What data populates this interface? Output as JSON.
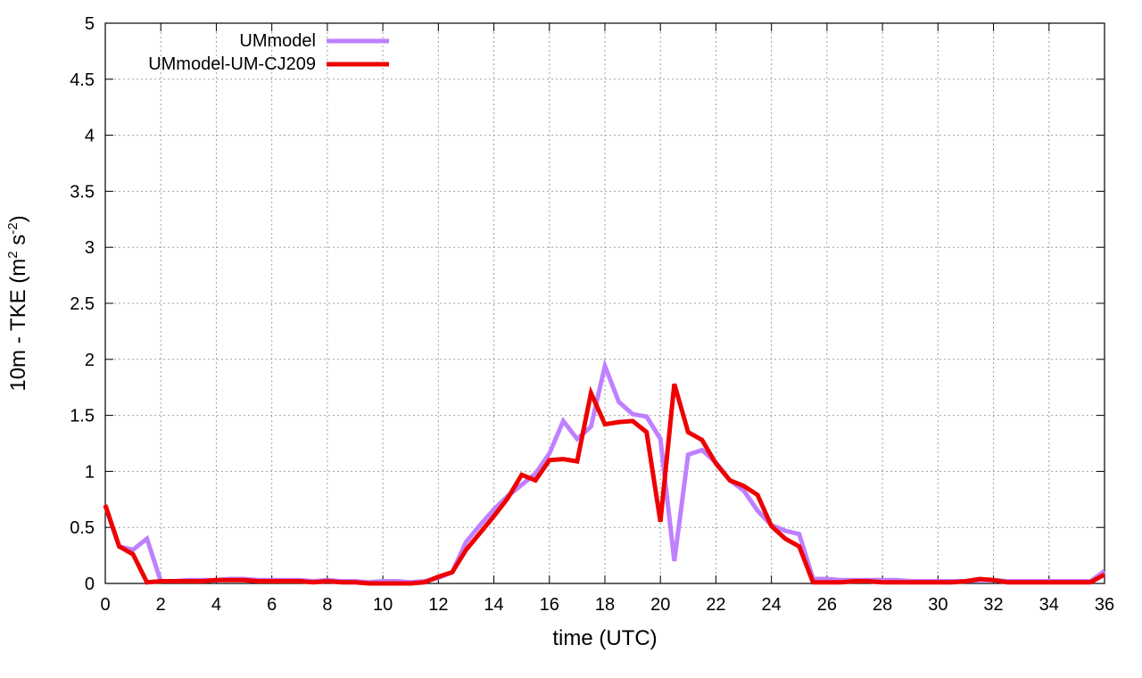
{
  "chart_data": {
    "type": "line",
    "xlabel": "time (UTC)",
    "ylabel": {
      "prefix": "10m - TKE (m",
      "sup1": "2",
      "mid": " s",
      "sup2": "-2",
      "suffix": ")"
    },
    "xlim": [
      0,
      36
    ],
    "ylim": [
      0,
      5
    ],
    "xticks": [
      0,
      2,
      4,
      6,
      8,
      10,
      12,
      14,
      16,
      18,
      20,
      22,
      24,
      26,
      28,
      30,
      32,
      34,
      36
    ],
    "yticks": [
      0,
      0.5,
      1,
      1.5,
      2,
      2.5,
      3,
      3.5,
      4,
      4.5,
      5
    ],
    "ytick_labels": [
      "0",
      "0.5",
      "1",
      "1.5",
      "2",
      "2.5",
      "3",
      "3.5",
      "4",
      "4.5",
      "5"
    ],
    "grid": true,
    "legend_position": "top-left",
    "series": [
      {
        "name": "UMmodel",
        "color": "#bf80ff",
        "x": [
          0,
          0.5,
          1,
          1.5,
          2,
          2.5,
          3,
          3.5,
          4,
          4.5,
          5,
          5.5,
          6,
          6.5,
          7,
          7.5,
          8,
          8.5,
          9,
          9.5,
          10,
          10.5,
          11,
          11.5,
          12,
          12.5,
          13,
          13.5,
          14,
          14.5,
          15,
          15.5,
          16,
          16.5,
          17,
          17.5,
          18,
          18.5,
          19,
          19.5,
          20,
          20.5,
          21,
          21.5,
          22,
          22.5,
          23,
          23.5,
          24,
          24.5,
          25,
          25.5,
          26,
          26.5,
          27,
          27.5,
          28,
          28.5,
          29,
          29.5,
          30,
          30.5,
          31,
          31.5,
          32,
          32.5,
          33,
          33.5,
          34,
          34.5,
          35,
          35.5,
          36
        ],
        "values": [
          0.69,
          0.33,
          0.3,
          0.4,
          0.02,
          0.02,
          0.03,
          0.03,
          0.03,
          0.04,
          0.04,
          0.03,
          0.03,
          0.03,
          0.03,
          0.02,
          0.03,
          0.02,
          0.02,
          0.01,
          0.02,
          0.02,
          0.01,
          0.02,
          0.05,
          0.1,
          0.37,
          0.52,
          0.66,
          0.78,
          0.88,
          0.98,
          1.16,
          1.45,
          1.29,
          1.4,
          1.94,
          1.62,
          1.51,
          1.49,
          1.29,
          0.2,
          1.15,
          1.19,
          1.08,
          0.92,
          0.83,
          0.65,
          0.52,
          0.47,
          0.44,
          0.04,
          0.04,
          0.03,
          0.03,
          0.03,
          0.03,
          0.03,
          0.02,
          0.02,
          0.02,
          0.02,
          0.02,
          0.03,
          0.03,
          0.02,
          0.02,
          0.02,
          0.02,
          0.02,
          0.02,
          0.02,
          0.11
        ]
      },
      {
        "name": "UMmodel-UM-CJ209",
        "color": "#ee0000",
        "x": [
          0,
          0.5,
          1,
          1.5,
          2,
          2.5,
          3,
          3.5,
          4,
          4.5,
          5,
          5.5,
          6,
          6.5,
          7,
          7.5,
          8,
          8.5,
          9,
          9.5,
          10,
          10.5,
          11,
          11.5,
          12,
          12.5,
          13,
          13.5,
          14,
          14.5,
          15,
          15.5,
          16,
          16.5,
          17,
          17.5,
          18,
          18.5,
          19,
          19.5,
          20,
          20.5,
          21,
          21.5,
          22,
          22.5,
          23,
          23.5,
          24,
          24.5,
          25,
          25.5,
          26,
          26.5,
          27,
          27.5,
          28,
          28.5,
          29,
          29.5,
          30,
          30.5,
          31,
          31.5,
          32,
          32.5,
          33,
          33.5,
          34,
          34.5,
          35,
          35.5,
          36
        ],
        "values": [
          0.7,
          0.33,
          0.26,
          0.01,
          0.02,
          0.02,
          0.02,
          0.02,
          0.03,
          0.03,
          0.03,
          0.02,
          0.02,
          0.02,
          0.02,
          0.01,
          0.02,
          0.01,
          0.01,
          0.0,
          0.0,
          0.0,
          0.0,
          0.01,
          0.06,
          0.1,
          0.3,
          0.45,
          0.6,
          0.76,
          0.97,
          0.92,
          1.1,
          1.11,
          1.09,
          1.7,
          1.42,
          1.44,
          1.45,
          1.35,
          0.55,
          1.78,
          1.35,
          1.28,
          1.07,
          0.92,
          0.87,
          0.79,
          0.51,
          0.4,
          0.33,
          0.01,
          0.01,
          0.01,
          0.02,
          0.02,
          0.01,
          0.01,
          0.01,
          0.01,
          0.01,
          0.01,
          0.02,
          0.04,
          0.03,
          0.01,
          0.01,
          0.01,
          0.01,
          0.01,
          0.01,
          0.01,
          0.08
        ]
      }
    ]
  }
}
